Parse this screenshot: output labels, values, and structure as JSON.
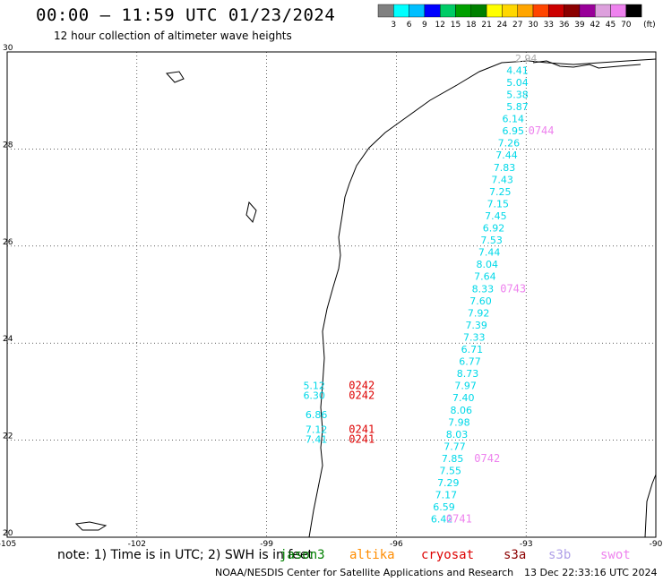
{
  "title": "00:00 – 11:59 UTC 01/23/2024",
  "subtitle": "12 hour collection of altimeter wave heights",
  "colorbar": {
    "colors": [
      "#808080",
      "#00ffff",
      "#00bfff",
      "#0000ff",
      "#00cc66",
      "#00a000",
      "#008000",
      "#ffff00",
      "#ffd700",
      "#ffa500",
      "#ff4500",
      "#cc0000",
      "#8b0000",
      "#990099",
      "#dda0dd",
      "#ee82ee",
      "#000000"
    ],
    "labels": [
      "3",
      "6",
      "9",
      "12",
      "15",
      "18",
      "21",
      "24",
      "27",
      "30",
      "33",
      "36",
      "39",
      "42",
      "45",
      "70"
    ],
    "unit": "(ft)"
  },
  "axes": {
    "lon_labels": [
      "-105",
      "-102",
      "-99",
      "-96",
      "-93",
      "-90"
    ],
    "lat_labels": [
      "20",
      "22",
      "24",
      "26",
      "28",
      "30"
    ]
  },
  "tracks": [
    {
      "lon": -93.0,
      "lat": 29.8,
      "swh": "2.94",
      "color": "#aaaaaa"
    },
    {
      "lon": -93.2,
      "lat": 29.55,
      "swh": "4.41",
      "color": "#00d8e8"
    },
    {
      "lon": -93.2,
      "lat": 29.3,
      "swh": "5.04",
      "color": "#00d8e8"
    },
    {
      "lon": -93.2,
      "lat": 29.05,
      "swh": "5.38",
      "color": "#00d8e8"
    },
    {
      "lon": -93.2,
      "lat": 28.8,
      "swh": "5.87",
      "color": "#00d8e8"
    },
    {
      "lon": -93.3,
      "lat": 28.55,
      "swh": "6.14",
      "color": "#00d8e8"
    },
    {
      "lon": -93.3,
      "lat": 28.3,
      "swh": "6.95",
      "color": "#00d8e8"
    },
    {
      "lon": -93.4,
      "lat": 28.05,
      "swh": "7.26",
      "color": "#00d8e8"
    },
    {
      "lon": -93.45,
      "lat": 27.8,
      "swh": "7.44",
      "color": "#00d8e8"
    },
    {
      "lon": -93.5,
      "lat": 27.55,
      "swh": "7.83",
      "color": "#00d8e8"
    },
    {
      "lon": -93.55,
      "lat": 27.3,
      "swh": "7.43",
      "color": "#00d8e8"
    },
    {
      "lon": -93.6,
      "lat": 27.05,
      "swh": "7.25",
      "color": "#00d8e8"
    },
    {
      "lon": -93.65,
      "lat": 26.8,
      "swh": "7.15",
      "color": "#00d8e8"
    },
    {
      "lon": -93.7,
      "lat": 26.55,
      "swh": "7.45",
      "color": "#00d8e8"
    },
    {
      "lon": -93.75,
      "lat": 26.3,
      "swh": "6.92",
      "color": "#00d8e8"
    },
    {
      "lon": -93.8,
      "lat": 26.05,
      "swh": "7.53",
      "color": "#00d8e8"
    },
    {
      "lon": -93.85,
      "lat": 25.8,
      "swh": "7.44",
      "color": "#00d8e8"
    },
    {
      "lon": -93.9,
      "lat": 25.55,
      "swh": "8.04",
      "color": "#00d8e8"
    },
    {
      "lon": -93.95,
      "lat": 25.3,
      "swh": "7.64",
      "color": "#00d8e8"
    },
    {
      "lon": -94.0,
      "lat": 25.05,
      "swh": "8.33",
      "color": "#00d8e8"
    },
    {
      "lon": -94.05,
      "lat": 24.8,
      "swh": "7.60",
      "color": "#00d8e8"
    },
    {
      "lon": -94.1,
      "lat": 24.55,
      "swh": "7.92",
      "color": "#00d8e8"
    },
    {
      "lon": -94.15,
      "lat": 24.3,
      "swh": "7.39",
      "color": "#00d8e8"
    },
    {
      "lon": -94.2,
      "lat": 24.05,
      "swh": "7.33",
      "color": "#00d8e8"
    },
    {
      "lon": -94.25,
      "lat": 23.8,
      "swh": "6.71",
      "color": "#00d8e8"
    },
    {
      "lon": -94.3,
      "lat": 23.55,
      "swh": "6.77",
      "color": "#00d8e8"
    },
    {
      "lon": -94.35,
      "lat": 23.3,
      "swh": "8.73",
      "color": "#00d8e8"
    },
    {
      "lon": -94.4,
      "lat": 23.05,
      "swh": "7.97",
      "color": "#00d8e8"
    },
    {
      "lon": -94.45,
      "lat": 22.8,
      "swh": "7.40",
      "color": "#00d8e8"
    },
    {
      "lon": -94.5,
      "lat": 22.55,
      "swh": "8.06",
      "color": "#00d8e8"
    },
    {
      "lon": -94.55,
      "lat": 22.3,
      "swh": "7.98",
      "color": "#00d8e8"
    },
    {
      "lon": -94.6,
      "lat": 22.05,
      "swh": "8.03",
      "color": "#00d8e8"
    },
    {
      "lon": -94.65,
      "lat": 21.8,
      "swh": "7.77",
      "color": "#00d8e8"
    },
    {
      "lon": -94.7,
      "lat": 21.55,
      "swh": "7.85",
      "color": "#00d8e8"
    },
    {
      "lon": -94.75,
      "lat": 21.3,
      "swh": "7.55",
      "color": "#00d8e8"
    },
    {
      "lon": -94.8,
      "lat": 21.05,
      "swh": "7.29",
      "color": "#00d8e8"
    },
    {
      "lon": -94.85,
      "lat": 20.8,
      "swh": "7.17",
      "color": "#00d8e8"
    },
    {
      "lon": -94.9,
      "lat": 20.55,
      "swh": "6.59",
      "color": "#00d8e8"
    },
    {
      "lon": -94.95,
      "lat": 20.3,
      "swh": "6.42",
      "color": "#00d8e8"
    },
    {
      "lon": -97.9,
      "lat": 23.05,
      "swh": "5.12",
      "color": "#00d8e8"
    },
    {
      "lon": -97.9,
      "lat": 22.85,
      "swh": "6.30",
      "color": "#00d8e8"
    },
    {
      "lon": -97.85,
      "lat": 22.45,
      "swh": "6.86",
      "color": "#00d8e8"
    },
    {
      "lon": -97.85,
      "lat": 22.15,
      "swh": "7.12",
      "color": "#00d8e8"
    },
    {
      "lon": -97.85,
      "lat": 21.95,
      "swh": "7.41",
      "color": "#00d8e8"
    }
  ],
  "time_labels": [
    {
      "lon": -92.95,
      "lat": 28.3,
      "text": "0744",
      "color": "#ee82ee"
    },
    {
      "lon": -93.6,
      "lat": 25.05,
      "text": "0743",
      "color": "#ee82ee"
    },
    {
      "lon": -94.2,
      "lat": 21.55,
      "text": "0742",
      "color": "#ee82ee"
    },
    {
      "lon": -94.85,
      "lat": 20.3,
      "text": "0741",
      "color": "#ee82ee"
    },
    {
      "lon": -97.1,
      "lat": 23.05,
      "text": "0242",
      "color": "#dd0000"
    },
    {
      "lon": -97.1,
      "lat": 22.85,
      "text": "0242",
      "color": "#dd0000"
    },
    {
      "lon": -97.1,
      "lat": 22.15,
      "text": "0241",
      "color": "#dd0000"
    },
    {
      "lon": -97.1,
      "lat": 21.95,
      "text": "0241",
      "color": "#dd0000"
    }
  ],
  "note": "note: 1) Time is in UTC; 2) SWH is in feet",
  "satellites": [
    {
      "name": "jason3",
      "color": "#008000"
    },
    {
      "name": "altika",
      "color": "#ff8c00"
    },
    {
      "name": "cryosat",
      "color": "#dd0000"
    },
    {
      "name": "s3a",
      "color": "#8b0000"
    },
    {
      "name": "s3b",
      "color": "#b0a0e8"
    },
    {
      "name": "swot",
      "color": "#ee82ee"
    }
  ],
  "credit": "NOAA/NESDIS Center for Satellite Applications and Research",
  "timestamp": "13 Dec 22:33:16 UTC 2024"
}
